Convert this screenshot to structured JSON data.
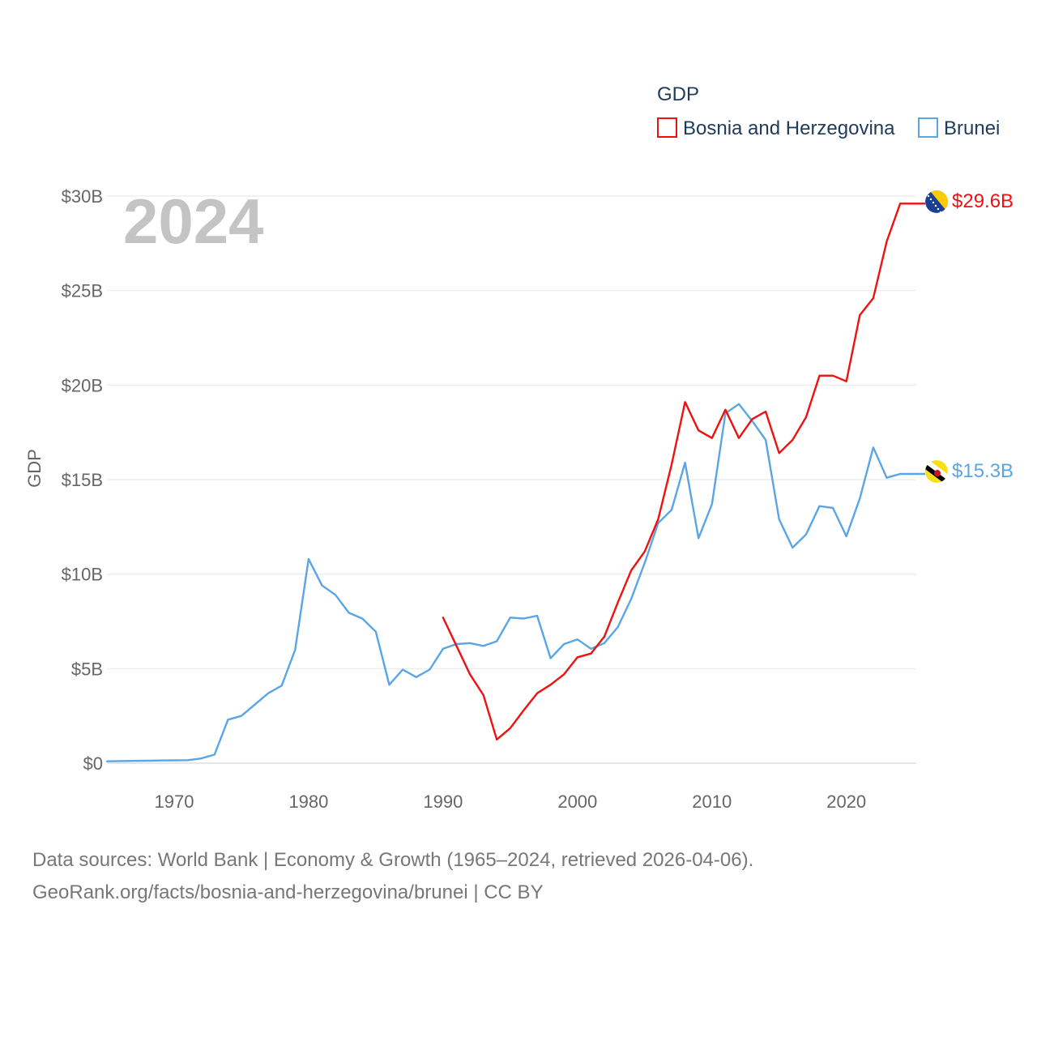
{
  "chart_data": {
    "type": "line",
    "title": "GDP",
    "ylabel": "GDP",
    "xlabel": "",
    "current_year": "2024",
    "xlim": [
      1965,
      2025.2
    ],
    "ylim": [
      0,
      30
    ],
    "y_ticks": [
      {
        "value": 0,
        "label": "$0"
      },
      {
        "value": 5,
        "label": "$5B"
      },
      {
        "value": 10,
        "label": "$10B"
      },
      {
        "value": 15,
        "label": "$15B"
      },
      {
        "value": 20,
        "label": "$20B"
      },
      {
        "value": 25,
        "label": "$25B"
      },
      {
        "value": 30,
        "label": "$30B"
      }
    ],
    "x_ticks": [
      {
        "value": 1970,
        "label": "1970"
      },
      {
        "value": 1980,
        "label": "1980"
      },
      {
        "value": 1990,
        "label": "1990"
      },
      {
        "value": 2000,
        "label": "2000"
      },
      {
        "value": 2010,
        "label": "2010"
      },
      {
        "value": 2020,
        "label": "2020"
      }
    ],
    "legend_title": "GDP",
    "series": [
      {
        "name": "Bosnia and Herzegovina",
        "color": "#ee1111",
        "end_label": "$29.6B",
        "flag_icon": "bosnia-flag-icon",
        "x": [
          1990,
          1991,
          1992,
          1993,
          1994,
          1995,
          1996,
          1997,
          1998,
          1999,
          2000,
          2001,
          2002,
          2003,
          2004,
          2005,
          2006,
          2007,
          2008,
          2009,
          2010,
          2011,
          2012,
          2013,
          2014,
          2015,
          2016,
          2017,
          2018,
          2019,
          2020,
          2021,
          2022,
          2023,
          2024
        ],
        "values": [
          7.7,
          6.2,
          4.7,
          3.6,
          1.25,
          1.85,
          2.8,
          3.7,
          4.15,
          4.7,
          5.6,
          5.8,
          6.7,
          8.5,
          10.2,
          11.2,
          12.9,
          15.8,
          19.1,
          17.6,
          17.2,
          18.7,
          17.2,
          18.2,
          18.6,
          16.4,
          17.1,
          18.3,
          20.5,
          20.5,
          20.2,
          23.7,
          24.6,
          27.6,
          29.6
        ]
      },
      {
        "name": "Brunei",
        "color": "#5aa5e6",
        "end_label": "$15.3B",
        "flag_icon": "brunei-flag-icon",
        "x": [
          1965,
          1966,
          1967,
          1968,
          1969,
          1970,
          1971,
          1972,
          1973,
          1974,
          1975,
          1976,
          1977,
          1978,
          1979,
          1980,
          1981,
          1982,
          1983,
          1984,
          1985,
          1986,
          1987,
          1988,
          1989,
          1990,
          1991,
          1992,
          1993,
          1994,
          1995,
          1996,
          1997,
          1998,
          1999,
          2000,
          2001,
          2002,
          2003,
          2004,
          2005,
          2006,
          2007,
          2008,
          2009,
          2010,
          2011,
          2012,
          2013,
          2014,
          2015,
          2016,
          2017,
          2018,
          2019,
          2020,
          2021,
          2022,
          2023,
          2024
        ],
        "values": [
          0.1,
          0.11,
          0.12,
          0.13,
          0.14,
          0.15,
          0.16,
          0.25,
          0.45,
          2.3,
          2.5,
          3.1,
          3.7,
          4.1,
          6.0,
          10.8,
          9.4,
          8.9,
          7.95,
          7.65,
          6.95,
          4.15,
          4.95,
          4.55,
          4.95,
          6.05,
          6.3,
          6.35,
          6.2,
          6.45,
          7.7,
          7.65,
          7.8,
          5.55,
          6.3,
          6.55,
          6.05,
          6.35,
          7.2,
          8.7,
          10.6,
          12.7,
          13.4,
          15.9,
          11.9,
          13.7,
          18.5,
          19.0,
          18.1,
          17.1,
          12.9,
          11.4,
          12.1,
          13.6,
          13.5,
          12.0,
          14.0,
          16.7,
          15.1,
          15.3
        ]
      }
    ]
  },
  "footer": {
    "line1": "Data sources: World Bank | Economy & Growth (1965–2024, retrieved 2026-04-06).",
    "line2": "GeoRank.org/facts/bosnia-and-herzegovina/brunei | CC BY"
  }
}
